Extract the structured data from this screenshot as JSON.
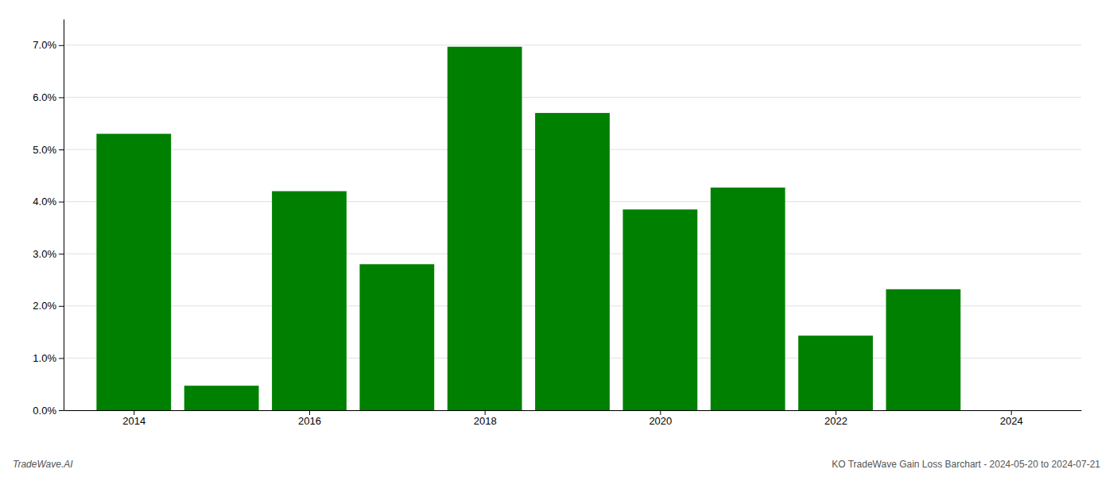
{
  "chart_data": {
    "type": "bar",
    "x": [
      2014,
      2015,
      2016,
      2017,
      2018,
      2019,
      2020,
      2021,
      2022,
      2023
    ],
    "values": [
      0.053,
      0.0047,
      0.042,
      0.028,
      0.0697,
      0.057,
      0.0385,
      0.0427,
      0.0143,
      0.0232
    ],
    "color": "#008000",
    "xlim": [
      2013.2,
      2024.8
    ],
    "xticks": [
      2014,
      2016,
      2018,
      2020,
      2022,
      2024
    ],
    "ylim": [
      0.0,
      0.075
    ],
    "yticks": [
      {
        "value": 0.0,
        "label": "0.0%"
      },
      {
        "value": 0.01,
        "label": "1.0%"
      },
      {
        "value": 0.02,
        "label": "2.0%"
      },
      {
        "value": 0.03,
        "label": "3.0%"
      },
      {
        "value": 0.04,
        "label": "4.0%"
      },
      {
        "value": 0.05,
        "label": "5.0%"
      },
      {
        "value": 0.06,
        "label": "6.0%"
      },
      {
        "value": 0.07,
        "label": "7.0%"
      }
    ],
    "grid": true,
    "annotations": [
      "TradeWave.AI",
      "KO TradeWave Gain Loss Barchart - 2024-05-20 to 2024-07-21"
    ]
  }
}
